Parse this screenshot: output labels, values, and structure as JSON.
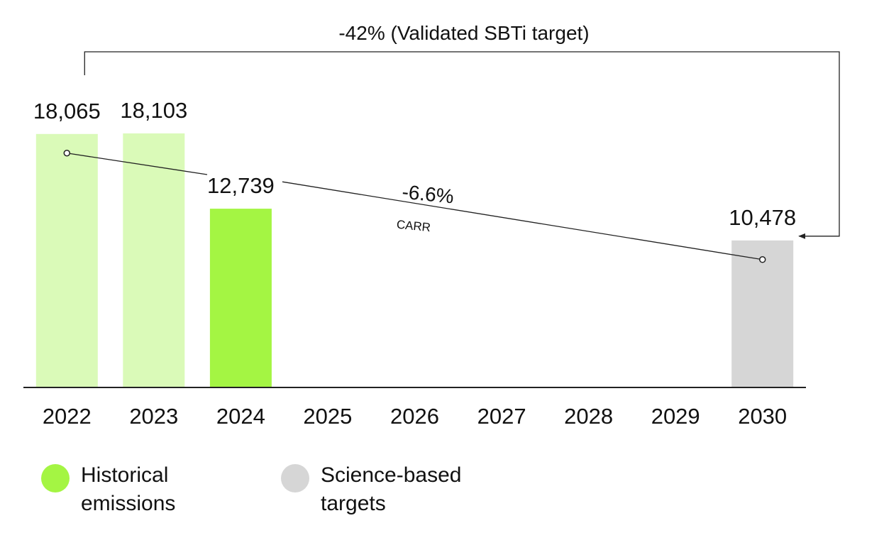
{
  "chart_data": {
    "type": "bar",
    "categories": [
      "2022",
      "2023",
      "2024",
      "2025",
      "2026",
      "2027",
      "2028",
      "2029",
      "2030"
    ],
    "values": [
      18065,
      18103,
      12739,
      null,
      null,
      null,
      null,
      null,
      10478
    ],
    "value_labels": [
      "18,065",
      "18,103",
      "12,739",
      "",
      "",
      "",
      "",
      "",
      "10,478"
    ],
    "bar_kinds": [
      "historical-past",
      "historical-past",
      "historical",
      "",
      "",
      "",
      "",
      "",
      "target"
    ],
    "ylim": [
      0,
      18103
    ],
    "grid": false,
    "target_note": "-42% (Validated SBTi target)",
    "trend": {
      "from": "2022",
      "to": "2030",
      "value": "-6.6%",
      "label": "CARR"
    },
    "legend": {
      "placement": "bottom-left",
      "items": [
        {
          "key": "historical",
          "label": "Historical emissions",
          "color": "#a4f543"
        },
        {
          "key": "target",
          "label": "Science-based targets",
          "color": "#d6d6d6"
        }
      ]
    },
    "colors": {
      "historical": "#a4f543",
      "historical-past": "#dafab8",
      "target": "#d6d6d6",
      "axis": "#222222",
      "line": "#222222"
    }
  }
}
